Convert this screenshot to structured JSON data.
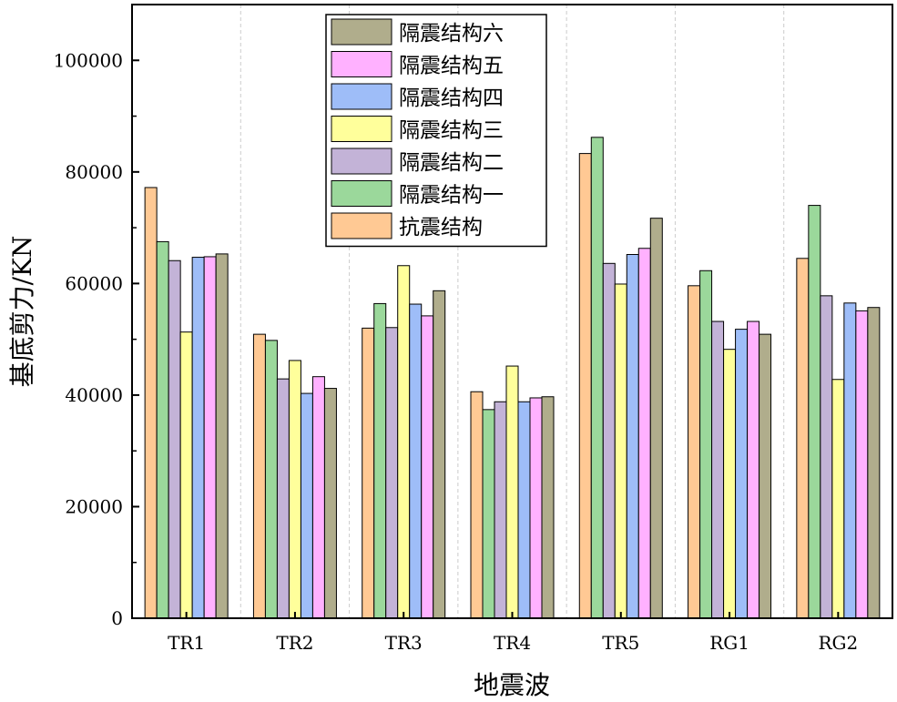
{
  "chart_data": {
    "type": "bar",
    "title": "",
    "xlabel": "地震波",
    "ylabel": "基底剪力/KN",
    "ylim": [
      0,
      110000
    ],
    "yticks": [
      0,
      20000,
      40000,
      60000,
      80000,
      100000
    ],
    "ytick_labels": [
      "0",
      "20000",
      "40000",
      "60000",
      "80000",
      "100000"
    ],
    "categories": [
      "TR1",
      "TR2",
      "TR3",
      "TR4",
      "TR5",
      "RG1",
      "RG2"
    ],
    "legend_position": "top-center",
    "series": [
      {
        "name": "抗震结构",
        "color": "#ffc994",
        "values": [
          77200,
          50900,
          52000,
          40600,
          83300,
          59600,
          64500
        ]
      },
      {
        "name": "隔震结构一",
        "color": "#9bd89b",
        "values": [
          67500,
          49800,
          56400,
          37400,
          86200,
          62300,
          74000
        ]
      },
      {
        "name": "隔震结构二",
        "color": "#c3b3d7",
        "values": [
          64100,
          42900,
          52100,
          38800,
          63600,
          53200,
          57800
        ]
      },
      {
        "name": "隔震结构三",
        "color": "#ffff9b",
        "values": [
          51300,
          46200,
          63200,
          45200,
          59900,
          48200,
          42800
        ]
      },
      {
        "name": "隔震结构四",
        "color": "#9ebdf8",
        "values": [
          64700,
          40300,
          56300,
          38800,
          65200,
          51800,
          56500
        ]
      },
      {
        "name": "隔震结构五",
        "color": "#ffb1ff",
        "values": [
          64800,
          43300,
          54200,
          39500,
          66300,
          53200,
          55100
        ]
      },
      {
        "name": "隔震结构六",
        "color": "#b0ad8c",
        "values": [
          65300,
          41200,
          58700,
          39700,
          71700,
          50900,
          55700
        ]
      }
    ]
  }
}
